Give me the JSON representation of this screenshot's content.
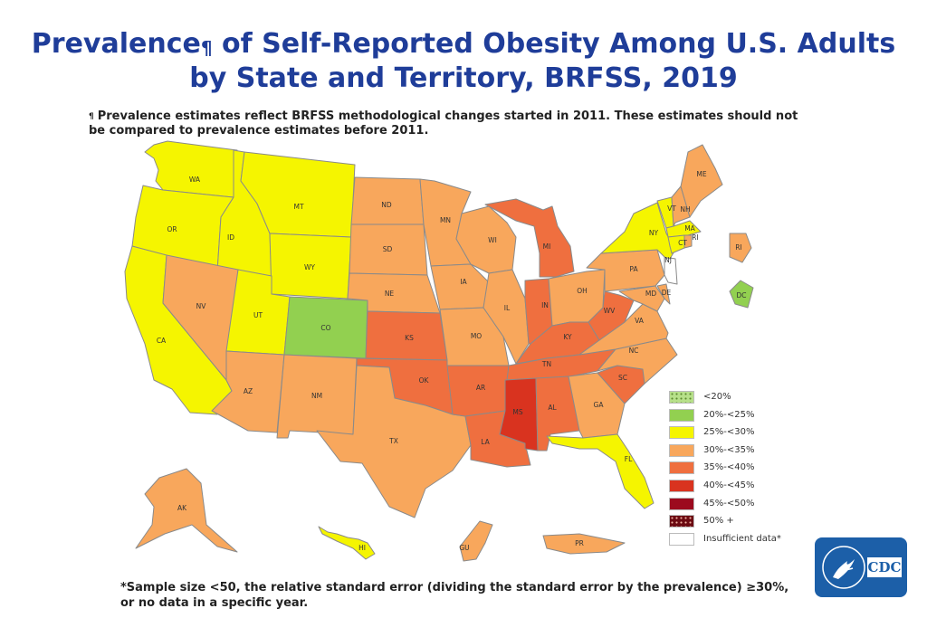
{
  "title": {
    "line1_pre": "Prevalence",
    "line1_mark": "¶",
    "line1_post": " of Self-Reported Obesity Among U.S. Adults",
    "line2": "by State and Territory, BRFSS, 2019"
  },
  "note": {
    "mark": "¶",
    "text": "Prevalence estimates reflect BRFSS methodological changes started in 2011. These estimates should not be compared to prevalence estimates before 2011."
  },
  "footnote": {
    "line1": "*Sample size <50, the relative standard error (dividing the standard error by the prevalence) ≥30%,",
    "line2": "or no data in a specific year."
  },
  "legend": [
    {
      "label": "<20%",
      "color": "#b7e08a",
      "pattern": true
    },
    {
      "label": "20%-<25%",
      "color": "#92d050"
    },
    {
      "label": "25%-<30%",
      "color": "#f5f500"
    },
    {
      "label": "30%-<35%",
      "color": "#f8a75c"
    },
    {
      "label": "35%-<40%",
      "color": "#ef6f3f"
    },
    {
      "label": "40%-<45%",
      "color": "#d9331f"
    },
    {
      "label": "45%-<50%",
      "color": "#9c0a1e"
    },
    {
      "label": "50% +",
      "color": "#6b0a12",
      "pattern": true
    },
    {
      "label": "Insufficient data*",
      "color": "#ffffff"
    }
  ],
  "states": [
    {
      "abbr": "WA",
      "category": "25%-<30%"
    },
    {
      "abbr": "OR",
      "category": "25%-<30%"
    },
    {
      "abbr": "CA",
      "category": "25%-<30%"
    },
    {
      "abbr": "ID",
      "category": "25%-<30%"
    },
    {
      "abbr": "NV",
      "category": "30%-<35%"
    },
    {
      "abbr": "MT",
      "category": "25%-<30%"
    },
    {
      "abbr": "WY",
      "category": "25%-<30%"
    },
    {
      "abbr": "UT",
      "category": "25%-<30%"
    },
    {
      "abbr": "AZ",
      "category": "30%-<35%"
    },
    {
      "abbr": "CO",
      "category": "20%-<25%"
    },
    {
      "abbr": "NM",
      "category": "30%-<35%"
    },
    {
      "abbr": "ND",
      "category": "30%-<35%"
    },
    {
      "abbr": "SD",
      "category": "30%-<35%"
    },
    {
      "abbr": "NE",
      "category": "30%-<35%"
    },
    {
      "abbr": "KS",
      "category": "35%-<40%"
    },
    {
      "abbr": "OK",
      "category": "35%-<40%"
    },
    {
      "abbr": "TX",
      "category": "30%-<35%"
    },
    {
      "abbr": "MN",
      "category": "30%-<35%"
    },
    {
      "abbr": "IA",
      "category": "30%-<35%"
    },
    {
      "abbr": "MO",
      "category": "30%-<35%"
    },
    {
      "abbr": "AR",
      "category": "35%-<40%"
    },
    {
      "abbr": "LA",
      "category": "35%-<40%"
    },
    {
      "abbr": "WI",
      "category": "30%-<35%"
    },
    {
      "abbr": "IL",
      "category": "30%-<35%"
    },
    {
      "abbr": "MI",
      "category": "35%-<40%"
    },
    {
      "abbr": "IN",
      "category": "35%-<40%"
    },
    {
      "abbr": "KY",
      "category": "35%-<40%"
    },
    {
      "abbr": "TN",
      "category": "35%-<40%"
    },
    {
      "abbr": "MS",
      "category": "40%-<45%"
    },
    {
      "abbr": "AL",
      "category": "35%-<40%"
    },
    {
      "abbr": "OH",
      "category": "30%-<35%"
    },
    {
      "abbr": "WV",
      "category": "35%-<40%"
    },
    {
      "abbr": "GA",
      "category": "30%-<35%"
    },
    {
      "abbr": "FL",
      "category": "25%-<30%"
    },
    {
      "abbr": "SC",
      "category": "35%-<40%"
    },
    {
      "abbr": "NC",
      "category": "30%-<35%"
    },
    {
      "abbr": "VA",
      "category": "30%-<35%"
    },
    {
      "abbr": "PA",
      "category": "30%-<35%"
    },
    {
      "abbr": "NY",
      "category": "25%-<30%"
    },
    {
      "abbr": "VT",
      "category": "25%-<30%"
    },
    {
      "abbr": "NH",
      "category": "30%-<35%"
    },
    {
      "abbr": "ME",
      "category": "30%-<35%"
    },
    {
      "abbr": "MA",
      "category": "25%-<30%"
    },
    {
      "abbr": "RI",
      "category": "30%-<35%"
    },
    {
      "abbr": "CT",
      "category": "25%-<30%"
    },
    {
      "abbr": "NJ",
      "category": "Insufficient data*"
    },
    {
      "abbr": "DE",
      "category": "30%-<35%"
    },
    {
      "abbr": "MD",
      "category": "30%-<35%"
    },
    {
      "abbr": "DC",
      "category": "20%-<25%"
    },
    {
      "abbr": "AK",
      "category": "30%-<35%"
    },
    {
      "abbr": "HI",
      "category": "25%-<30%"
    },
    {
      "abbr": "GU",
      "category": "30%-<35%"
    },
    {
      "abbr": "PR",
      "category": "30%-<35%"
    }
  ],
  "logo": {
    "text": "CDC"
  }
}
